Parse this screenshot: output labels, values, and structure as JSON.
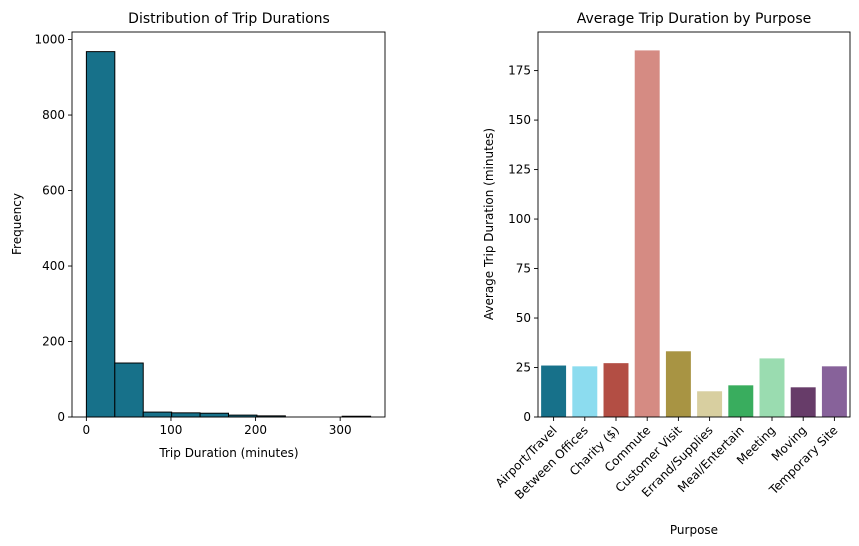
{
  "chart_data": [
    {
      "type": "bar",
      "subtype": "histogram",
      "title": "Distribution of Trip Durations",
      "xlabel": "Trip Duration (minutes)",
      "ylabel": "Frequency",
      "xlim": [
        -17,
        353
      ],
      "ylim": [
        0,
        1020
      ],
      "xticks": [
        0,
        100,
        200,
        300
      ],
      "yticks": [
        0,
        200,
        400,
        600,
        800,
        1000
      ],
      "bin_edges": [
        0,
        33.6,
        67.2,
        100.8,
        134.4,
        168,
        201.6,
        235.2,
        268.8,
        302.4,
        336
      ],
      "values": [
        968,
        143,
        13,
        11,
        10,
        5,
        3,
        0,
        0,
        2
      ],
      "color": "#17718A",
      "edge_color": "#000000",
      "grid": false
    },
    {
      "type": "bar",
      "title": "Average Trip Duration by Purpose",
      "xlabel": "Purpose",
      "ylabel": "Average Trip Duration (minutes)",
      "ylim": [
        0,
        194.5
      ],
      "yticks": [
        0,
        25,
        50,
        75,
        100,
        125,
        150,
        175
      ],
      "categories": [
        "Airport/Travel",
        "Between Offices",
        "Charity ($)",
        "Commute",
        "Customer Visit",
        "Errand/Supplies",
        "Meal/Entertain",
        "Meeting",
        "Moving",
        "Temporary Site"
      ],
      "values": [
        26.0,
        25.6,
        27.2,
        185.2,
        33.2,
        13.0,
        16.0,
        29.6,
        15.0,
        25.6
      ],
      "colors": [
        "#17718A",
        "#8CDCEF",
        "#B34E44",
        "#D58B83",
        "#A89443",
        "#D8CFA0",
        "#39AD5E",
        "#9ADCB0",
        "#673C69",
        "#87629A"
      ],
      "grid": false
    }
  ]
}
